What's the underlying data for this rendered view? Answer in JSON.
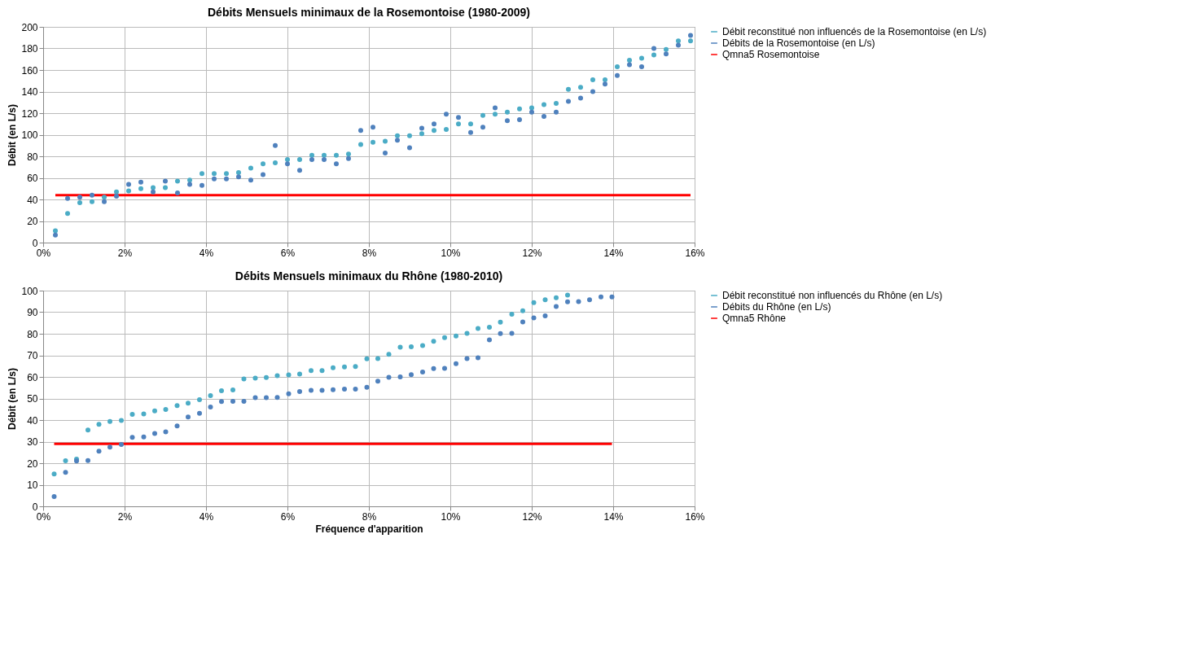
{
  "chart_data": [
    {
      "type": "scatter",
      "title": "Débits Mensuels minimaux de la Rosemontoise (1980-2009)",
      "ylabel": "Débit (en L/s)",
      "marker": "circle",
      "grid": true,
      "legend": "right",
      "xlim": [
        0,
        16
      ],
      "xticks": [
        {
          "value": 0,
          "label": "0%"
        },
        {
          "value": 2,
          "label": "2%"
        },
        {
          "value": 4,
          "label": "4%"
        },
        {
          "value": 6,
          "label": "6%"
        },
        {
          "value": 8,
          "label": "8%"
        },
        {
          "value": 10,
          "label": "10%"
        },
        {
          "value": 12,
          "label": "12%"
        },
        {
          "value": 14,
          "label": "14%"
        },
        {
          "value": 16,
          "label": "16%"
        }
      ],
      "ylim": [
        0,
        200
      ],
      "yticks": [
        0,
        20,
        40,
        60,
        80,
        100,
        120,
        140,
        160,
        180,
        200
      ],
      "series": [
        {
          "name": "Débit reconstitué non influencés de la Rosemontoise (en L/s)",
          "color": "#4bacc6",
          "x": [
            0.3,
            0.6,
            0.9,
            1.2,
            1.5,
            1.8,
            2.1,
            2.4,
            2.7,
            3.0,
            3.3,
            3.6,
            3.9,
            4.2,
            4.5,
            4.8,
            5.1,
            5.4,
            5.7,
            6.0,
            6.3,
            6.6,
            6.9,
            7.2,
            7.5,
            7.8,
            8.1,
            8.4,
            8.7,
            9.0,
            9.3,
            9.6,
            9.9,
            10.2,
            10.5,
            10.8,
            11.1,
            11.4,
            11.7,
            12.0,
            12.3,
            12.6,
            12.9,
            13.2,
            13.5,
            13.8,
            14.1,
            14.4,
            14.7,
            15.0,
            15.3,
            15.6,
            15.9
          ],
          "values": [
            11,
            27,
            37,
            38,
            42,
            47,
            48,
            50,
            51,
            51,
            57,
            58,
            64,
            64,
            64,
            65,
            69,
            73,
            74,
            77,
            77,
            81,
            81,
            81,
            82,
            91,
            93,
            94,
            99,
            99,
            101,
            104,
            105,
            110,
            110,
            118,
            119,
            121,
            124,
            125,
            128,
            129,
            142,
            144,
            151,
            151,
            163,
            169,
            171,
            174,
            179,
            187,
            187
          ]
        },
        {
          "name": "Débits de la Rosemontoise (en L/s)",
          "color": "#4f81bd",
          "x": [
            0.3,
            0.6,
            0.9,
            1.2,
            1.5,
            1.8,
            2.1,
            2.4,
            2.7,
            3.0,
            3.3,
            3.6,
            3.9,
            4.2,
            4.5,
            4.8,
            5.1,
            5.4,
            5.7,
            6.0,
            6.3,
            6.6,
            6.9,
            7.2,
            7.5,
            7.8,
            8.1,
            8.4,
            8.7,
            9.0,
            9.3,
            9.6,
            9.9,
            10.2,
            10.5,
            10.8,
            11.1,
            11.4,
            11.7,
            12.0,
            12.3,
            12.6,
            12.9,
            13.2,
            13.5,
            13.8,
            14.1,
            14.4,
            14.7,
            15.0,
            15.3,
            15.6,
            15.9
          ],
          "values": [
            7,
            41,
            42,
            44,
            38,
            43,
            54,
            56,
            47,
            57,
            46,
            54,
            53,
            59,
            59,
            61,
            58,
            63,
            90,
            73,
            67,
            77,
            77,
            73,
            78,
            104,
            107,
            83,
            95,
            88,
            106,
            110,
            119,
            116,
            102,
            107,
            125,
            113,
            114,
            121,
            117,
            121,
            131,
            134,
            140,
            147,
            155,
            165,
            163,
            180,
            175,
            183,
            192
          ]
        },
        {
          "name": "Qmna5 Rosemontoise",
          "type": "line",
          "marker": "none",
          "color": "#ff0000",
          "x": [
            0.3,
            15.9
          ],
          "values": [
            44,
            44
          ]
        }
      ]
    },
    {
      "type": "scatter",
      "title": "Débits Mensuels minimaux du Rhône (1980-2010)",
      "xlabel": "Fréquence d'apparition",
      "ylabel": "Débit (en L/s)",
      "marker": "circle",
      "grid": true,
      "legend": "right",
      "xlim": [
        0,
        16
      ],
      "xticks": [
        {
          "value": 0,
          "label": "0%"
        },
        {
          "value": 2,
          "label": "2%"
        },
        {
          "value": 4,
          "label": "4%"
        },
        {
          "value": 6,
          "label": "6%"
        },
        {
          "value": 8,
          "label": "8%"
        },
        {
          "value": 10,
          "label": "10%"
        },
        {
          "value": 12,
          "label": "12%"
        },
        {
          "value": 14,
          "label": "14%"
        },
        {
          "value": 16,
          "label": "16%"
        }
      ],
      "ylim": [
        0,
        100
      ],
      "yticks": [
        0,
        10,
        20,
        30,
        40,
        50,
        60,
        70,
        80,
        90,
        100
      ],
      "series": [
        {
          "name": "Débit reconstitué non influencés du Rhône (en L/s)",
          "color": "#4bacc6",
          "x": [
            0.27,
            0.55,
            0.82,
            1.1,
            1.37,
            1.64,
            1.92,
            2.19,
            2.47,
            2.74,
            3.01,
            3.29,
            3.56,
            3.84,
            4.11,
            4.38,
            4.66,
            4.93,
            5.21,
            5.48,
            5.75,
            6.03,
            6.3,
            6.58,
            6.85,
            7.12,
            7.4,
            7.67,
            7.95,
            8.22,
            8.49,
            8.77,
            9.04,
            9.32,
            9.59,
            9.86,
            10.14,
            10.41,
            10.68,
            10.96,
            11.23,
            11.51,
            11.78,
            12.05,
            12.33,
            12.6,
            12.88
          ],
          "values": [
            15.0,
            21.1,
            21.9,
            35.4,
            38.0,
            39.3,
            39.8,
            42.6,
            42.8,
            44.2,
            44.9,
            46.7,
            47.8,
            49.4,
            51.3,
            53.6,
            54.0,
            59.1,
            59.4,
            59.7,
            60.6,
            60.9,
            61.3,
            62.9,
            62.9,
            64.2,
            64.6,
            64.8,
            68.4,
            68.5,
            70.5,
            73.8,
            74.0,
            74.5,
            76.5,
            78.2,
            79.0,
            80.2,
            82.5,
            83.0,
            85.4,
            89.1,
            90.7,
            94.4,
            95.8,
            96.7,
            97.9
          ]
        },
        {
          "name": "Débits du Rhône (en L/s)",
          "color": "#4f81bd",
          "x": [
            0.27,
            0.55,
            0.82,
            1.1,
            1.37,
            1.64,
            1.92,
            2.19,
            2.47,
            2.74,
            3.01,
            3.29,
            3.56,
            3.84,
            4.11,
            4.38,
            4.66,
            4.93,
            5.21,
            5.48,
            5.75,
            6.03,
            6.3,
            6.58,
            6.85,
            7.12,
            7.4,
            7.67,
            7.95,
            8.22,
            8.49,
            8.77,
            9.04,
            9.32,
            9.59,
            9.86,
            10.14,
            10.41,
            10.68,
            10.96,
            11.23,
            11.51,
            11.78,
            12.05,
            12.33,
            12.6,
            12.88,
            13.15,
            13.42,
            13.7,
            13.97
          ],
          "values": [
            4.5,
            15.8,
            21.0,
            21.2,
            25.6,
            27.5,
            28.7,
            32.0,
            32.2,
            33.8,
            34.5,
            37.3,
            41.4,
            43.1,
            46.0,
            48.6,
            48.7,
            48.7,
            50.4,
            50.4,
            50.5,
            52.2,
            53.2,
            53.8,
            53.8,
            54.1,
            54.3,
            54.3,
            55.2,
            58.0,
            59.8,
            60.0,
            61.0,
            62.3,
            63.9,
            64.0,
            66.1,
            68.5,
            68.9,
            77.2,
            80.1,
            80.2,
            85.5,
            87.4,
            88.3,
            92.6,
            94.8,
            94.9,
            95.8,
            97.1,
            97.1
          ]
        },
        {
          "name": "Qmna5 Rhône",
          "type": "line",
          "marker": "none",
          "color": "#ff0000",
          "x": [
            0.27,
            13.97
          ],
          "values": [
            29,
            29
          ]
        }
      ]
    }
  ]
}
